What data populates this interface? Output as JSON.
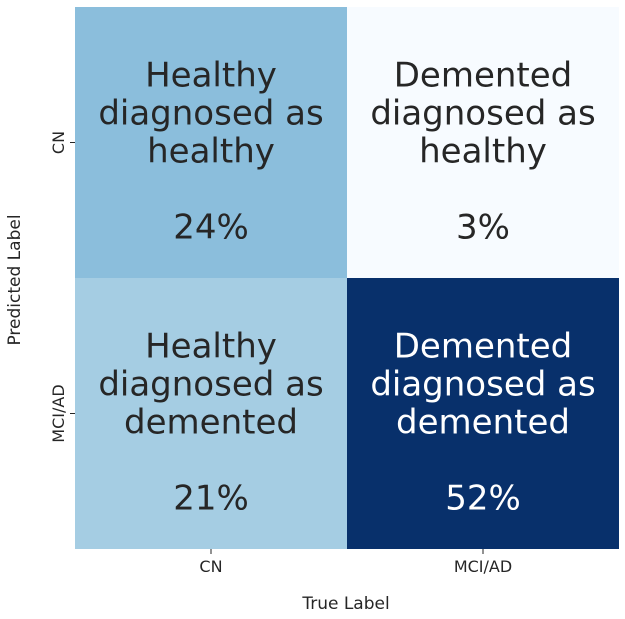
{
  "chart_data": {
    "type": "heatmap",
    "xlabel": "True Label",
    "ylabel": "Predicted Label",
    "x_categories": [
      "CN",
      "MCI/AD"
    ],
    "y_categories": [
      "CN",
      "MCI/AD"
    ],
    "colormap": "Blues",
    "colorbar": false,
    "cells": [
      {
        "row": 0,
        "col": 0,
        "value": 24,
        "lines": [
          "Healthy",
          "diagnosed as",
          "healthy",
          "",
          "24%"
        ],
        "color": "#8bbedc",
        "text_color": "#262626"
      },
      {
        "row": 0,
        "col": 1,
        "value": 3,
        "lines": [
          "Demented",
          "diagnosed as",
          "healthy",
          "",
          "3%"
        ],
        "color": "#f7fbff",
        "text_color": "#262626"
      },
      {
        "row": 1,
        "col": 0,
        "value": 21,
        "lines": [
          "Healthy",
          "diagnosed as",
          "demented",
          "",
          "21%"
        ],
        "color": "#a5cde3",
        "text_color": "#262626"
      },
      {
        "row": 1,
        "col": 1,
        "value": 52,
        "lines": [
          "Demented",
          "diagnosed as",
          "demented",
          "",
          "52%"
        ],
        "color": "#08306b",
        "text_color": "#ffffff"
      }
    ]
  }
}
